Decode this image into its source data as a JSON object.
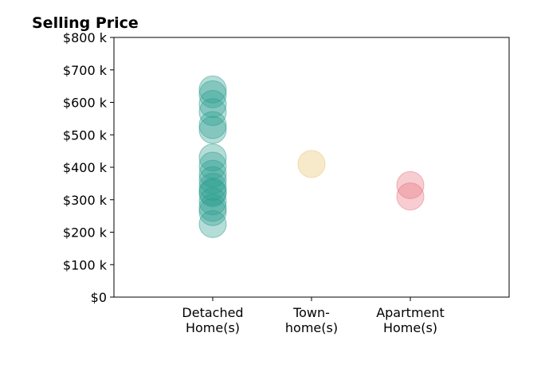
{
  "chart_data": {
    "type": "scatter",
    "title": "Selling Price",
    "xlabel": "",
    "ylabel": "",
    "categories": [
      "Detached\nHome(s)",
      "Town-\nhome(s)",
      "Apartment\nHome(s)"
    ],
    "ylim": [
      0,
      800000
    ],
    "yticks": [
      0,
      100000,
      200000,
      300000,
      400000,
      500000,
      600000,
      700000,
      800000
    ],
    "ytick_labels": [
      "$0",
      "$100 k",
      "$200 k",
      "$300 k",
      "$400 k",
      "$500 k",
      "$600 k",
      "$700 k",
      "$800 k"
    ],
    "grid": false,
    "series": [
      {
        "category": "Detached\nHome(s)",
        "color": "#2a9d8f",
        "values": [
          640000,
          625000,
          595000,
          570000,
          530000,
          515000,
          430000,
          405000,
          380000,
          360000,
          340000,
          325000,
          320000,
          295000,
          275000,
          262000,
          225000
        ]
      },
      {
        "category": "Town-\nhome(s)",
        "color": "#e9c46a",
        "values": [
          410000
        ]
      },
      {
        "category": "Apartment\nHome(s)",
        "color": "#e76f7f",
        "values": [
          345000,
          310000
        ]
      }
    ]
  }
}
